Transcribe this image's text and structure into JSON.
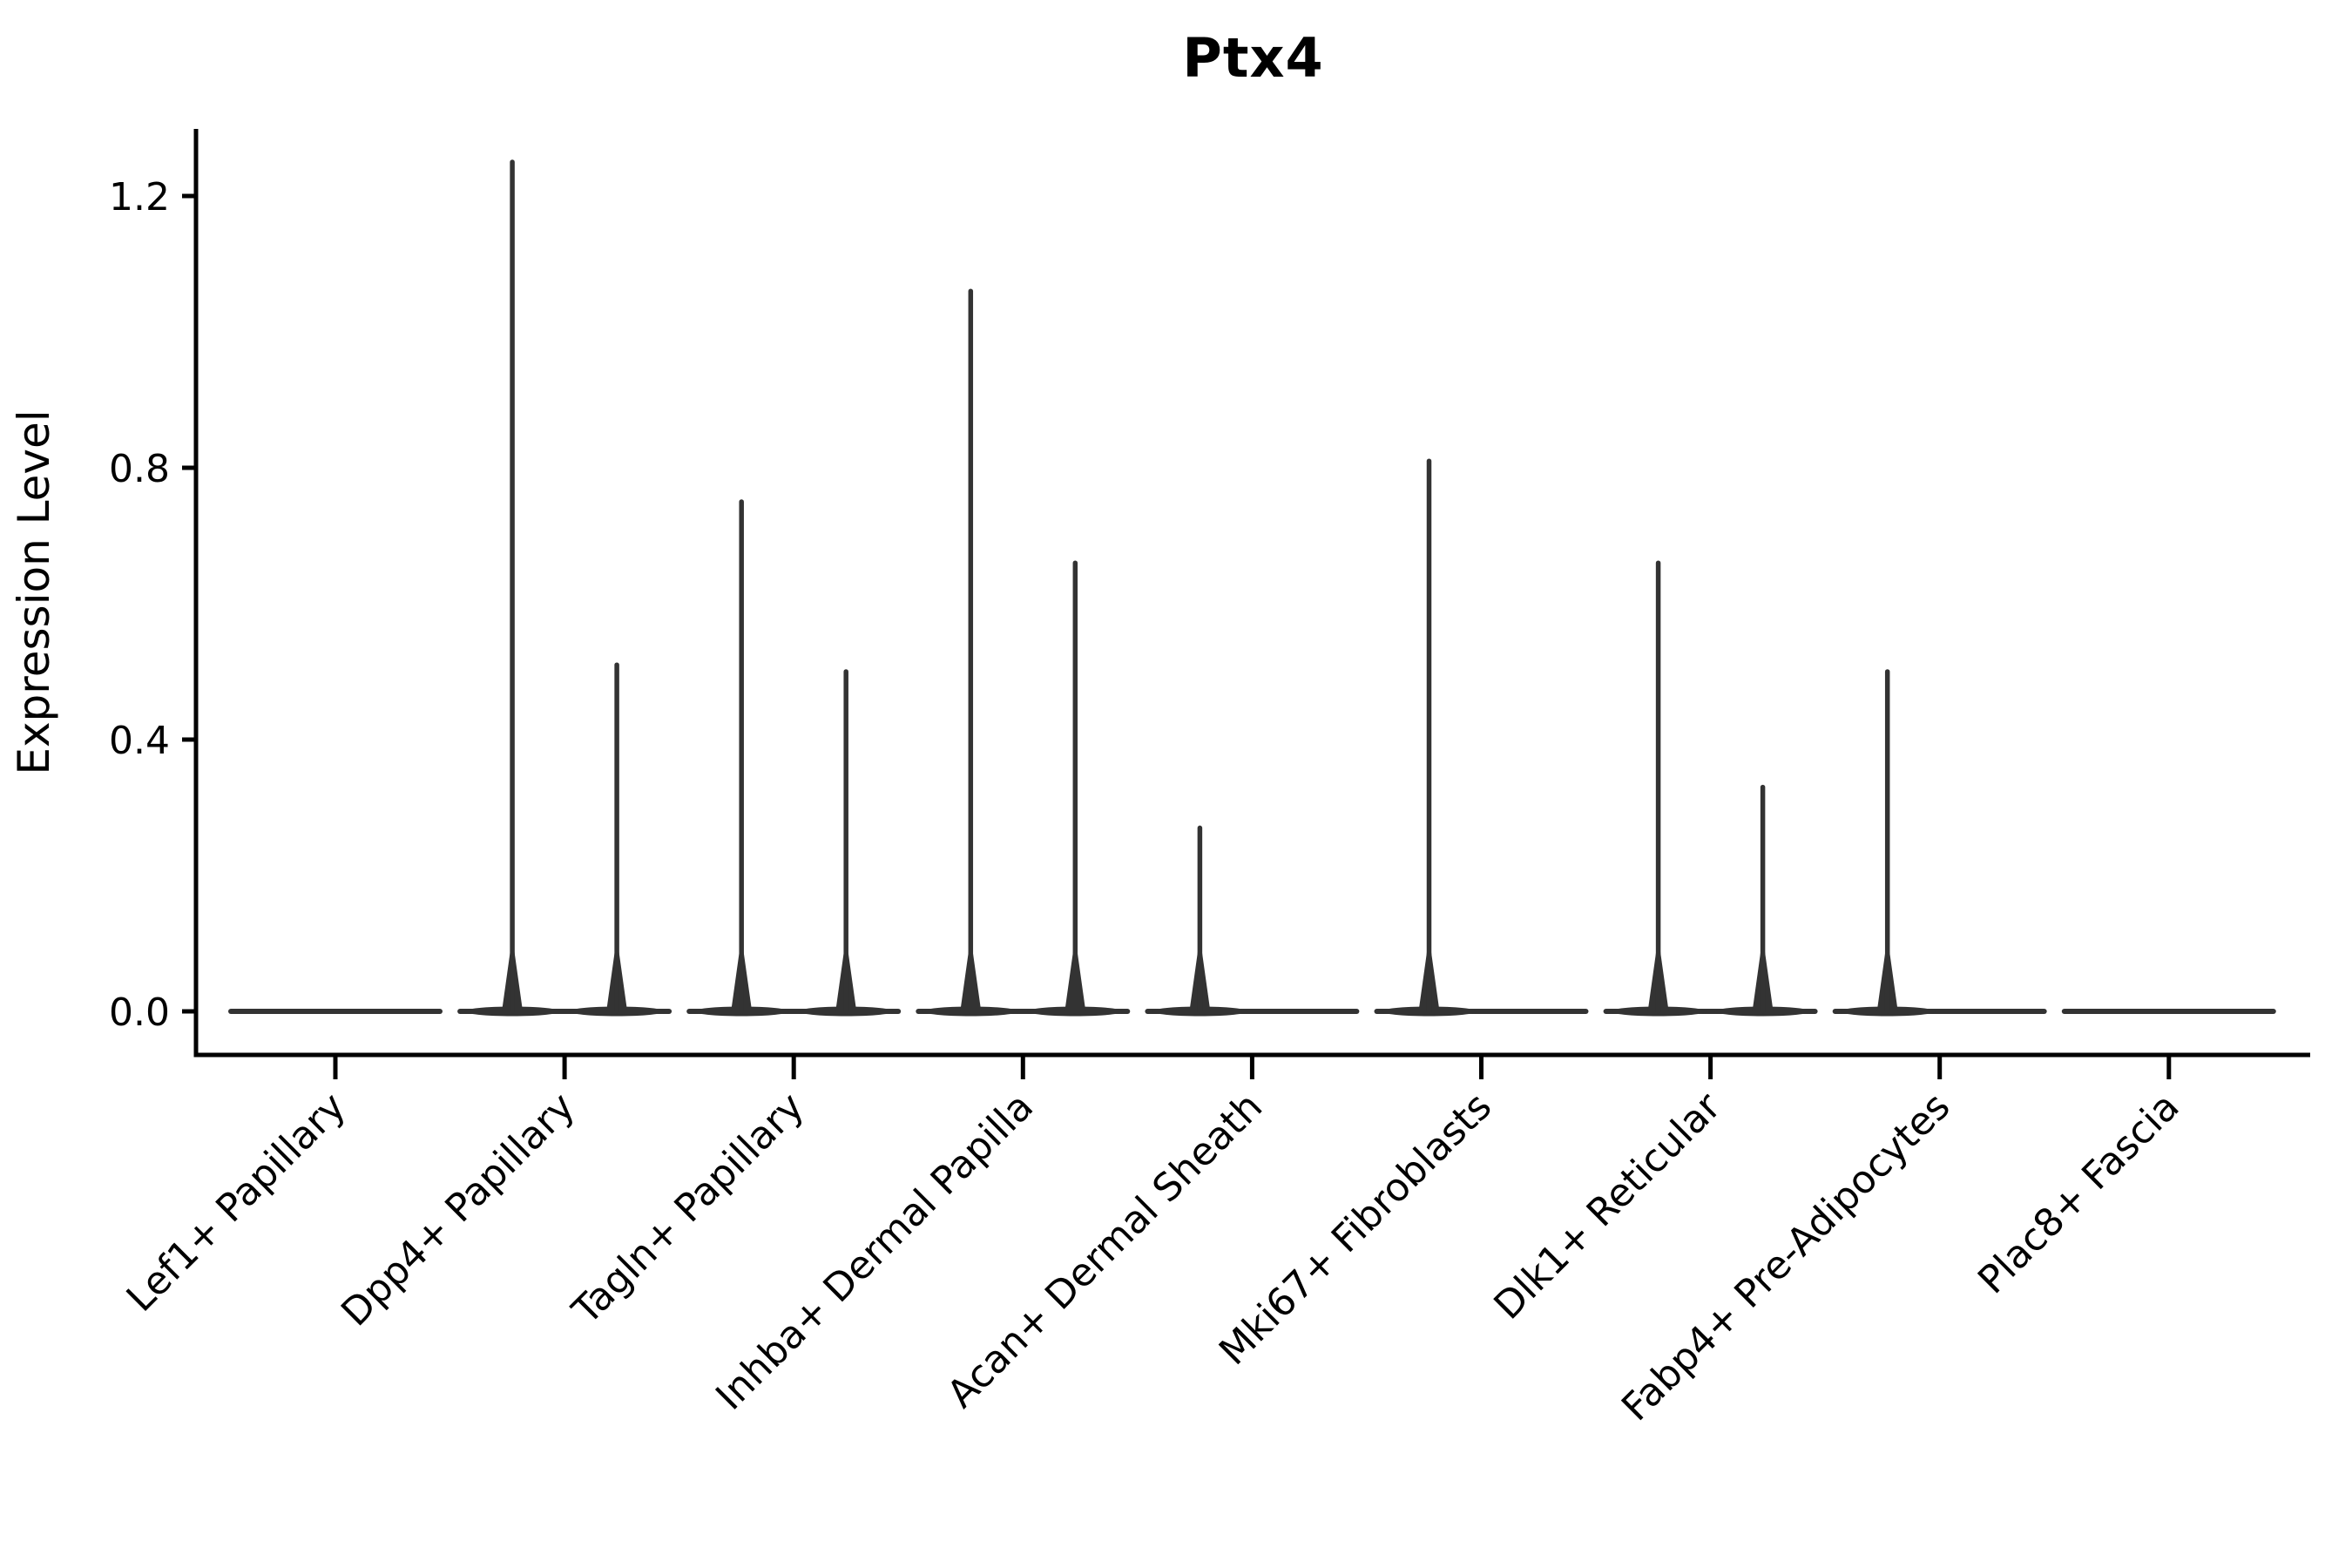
{
  "chart_data": {
    "type": "violin",
    "title": "Ptx4",
    "ylabel": "Expression Level",
    "xlabel": "",
    "yticks": [
      0.0,
      0.4,
      0.8,
      1.2
    ],
    "ytick_labels": [
      "0.0",
      "0.4",
      "0.8",
      "1.2"
    ],
    "ylim": [
      -0.07,
      1.36
    ],
    "grid": false,
    "legend_position": "none",
    "baseline_value": 0.0,
    "description": "Violin plot of Ptx4 expression; each cell type shows two very thin violins (density concentrated at 0) whose narrow tails spike up to the maximum expression value.",
    "violins": [
      {
        "category": "Lef1+ Papillary",
        "spikes": []
      },
      {
        "category": "Dpp4+ Papillary",
        "spikes": [
          {
            "side": "left",
            "max": 1.25
          },
          {
            "side": "right",
            "max": 0.51
          }
        ]
      },
      {
        "category": "Tagln+ Papillary",
        "spikes": [
          {
            "side": "left",
            "max": 0.75
          },
          {
            "side": "right",
            "max": 0.5
          }
        ]
      },
      {
        "category": "Inhba+ Dermal Papilla",
        "spikes": [
          {
            "side": "left",
            "max": 1.06
          },
          {
            "side": "right",
            "max": 0.66
          }
        ]
      },
      {
        "category": "Acan+ Dermal Sheath",
        "spikes": [
          {
            "side": "left",
            "max": 0.27
          }
        ]
      },
      {
        "category": "Mki67+ Fibroblasts",
        "spikes": [
          {
            "side": "left",
            "max": 0.81
          }
        ]
      },
      {
        "category": "Dlk1+ Reticular",
        "spikes": [
          {
            "side": "left",
            "max": 0.66
          },
          {
            "side": "right",
            "max": 0.33
          }
        ]
      },
      {
        "category": "Fabp4+ Pre-Adipocytes",
        "spikes": [
          {
            "side": "left",
            "max": 0.5
          }
        ]
      },
      {
        "category": "Plac8+ Fascia",
        "spikes": []
      }
    ],
    "colors": {
      "violin": "#333333",
      "axis": "#000000",
      "text": "#000000",
      "background": "#ffffff"
    }
  }
}
